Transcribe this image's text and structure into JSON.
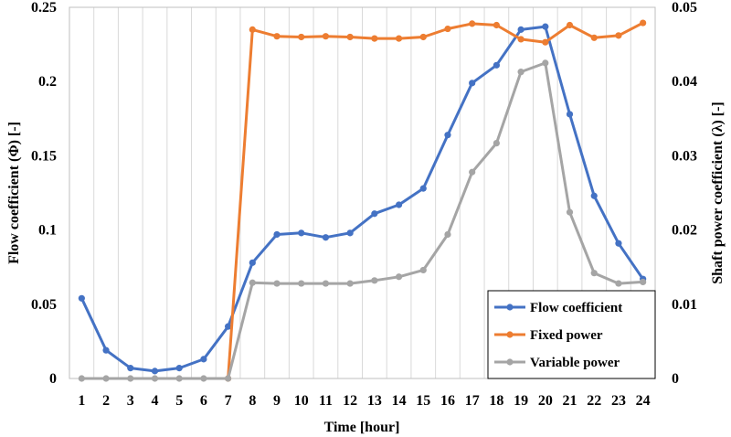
{
  "chart_data": {
    "type": "line",
    "title": "",
    "xlabel": "Time [hour]",
    "ylabel": "Flow coefficient (Φ) [-]",
    "y2label": "Shaft power coefficient (λ) [-]",
    "x": [
      1,
      2,
      3,
      4,
      5,
      6,
      7,
      8,
      9,
      10,
      11,
      12,
      13,
      14,
      15,
      16,
      17,
      18,
      19,
      20,
      21,
      22,
      23,
      24
    ],
    "ylim": [
      0,
      0.25
    ],
    "yticks": [
      "0",
      "0.05",
      "0.1",
      "0.15",
      "0.2",
      "0.25"
    ],
    "y2lim": [
      0,
      0.05
    ],
    "y2ticks": [
      "0",
      "0.01",
      "0.02",
      "0.03",
      "0.04",
      "0.05"
    ],
    "grid": "vertical",
    "legend_position": "bottom-right",
    "series": [
      {
        "name": "Flow coefficient",
        "axis": "left",
        "color": "#4472C4",
        "values": [
          0.054,
          0.019,
          0.007,
          0.005,
          0.007,
          0.013,
          0.035,
          0.078,
          0.097,
          0.098,
          0.095,
          0.098,
          0.111,
          0.117,
          0.128,
          0.164,
          0.199,
          0.211,
          0.235,
          0.237,
          0.178,
          0.123,
          0.091,
          0.067
        ]
      },
      {
        "name": "Fixed power",
        "axis": "right",
        "color": "#ED7D31",
        "values": [
          null,
          null,
          null,
          null,
          null,
          null,
          0.0,
          0.047,
          0.0461,
          0.046,
          0.0461,
          0.046,
          0.0458,
          0.0458,
          0.046,
          0.0471,
          0.0478,
          0.0476,
          0.0457,
          0.0453,
          0.0476,
          0.0459,
          0.0462,
          0.0479
        ]
      },
      {
        "name": "Variable power",
        "axis": "right",
        "color": "#A5A5A5",
        "values": [
          0,
          0,
          0,
          0,
          0,
          0,
          0,
          0.0129,
          0.0128,
          0.0128,
          0.0128,
          0.0128,
          0.0132,
          0.0137,
          0.0146,
          0.0194,
          0.0278,
          0.0317,
          0.0413,
          0.0425,
          0.0224,
          0.0142,
          0.0128,
          0.013
        ]
      }
    ]
  }
}
